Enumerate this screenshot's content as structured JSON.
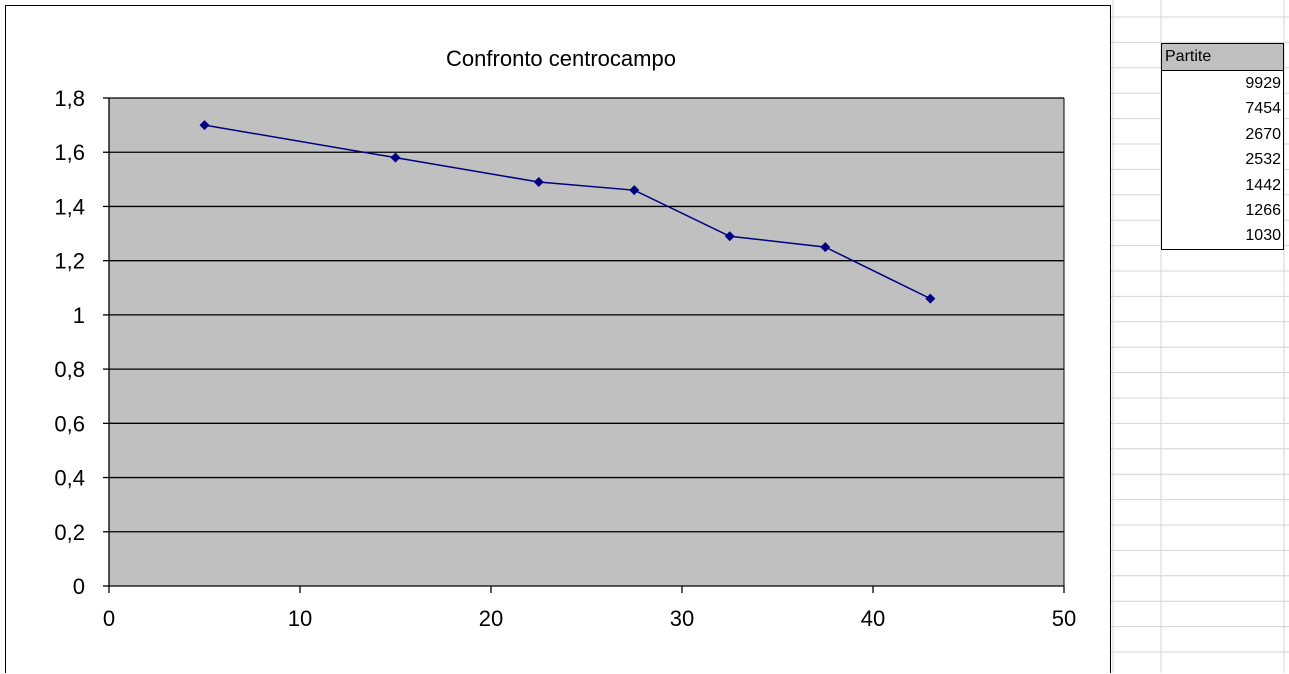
{
  "colors": {
    "plot_area": "#c0c0c0",
    "series_line": "#000080",
    "gridline": "#000000",
    "sheet_grid": "#d4d4d4"
  },
  "chart_data": {
    "type": "scatter",
    "title": "Confronto centrocampo",
    "xlim": [
      0,
      50
    ],
    "ylim": [
      0,
      1.8
    ],
    "x_ticks": [
      "0",
      "10",
      "20",
      "30",
      "40",
      "50"
    ],
    "y_ticks": [
      "0",
      "0,2",
      "0,4",
      "0,6",
      "0,8",
      "1",
      "1,2",
      "1,4",
      "1,6",
      "1,8"
    ],
    "grid": "horizontal",
    "legend": "none",
    "series": [
      {
        "x": [
          5,
          15,
          22.5,
          27.5,
          32.5,
          37.5,
          43
        ],
        "y": [
          1.7,
          1.58,
          1.49,
          1.46,
          1.29,
          1.25,
          1.06
        ],
        "marker": "diamond",
        "line": true
      }
    ]
  },
  "partite_table": {
    "header": "Partite",
    "values": [
      "9929",
      "7454",
      "2670",
      "2532",
      "1442",
      "1266",
      "1030"
    ]
  }
}
